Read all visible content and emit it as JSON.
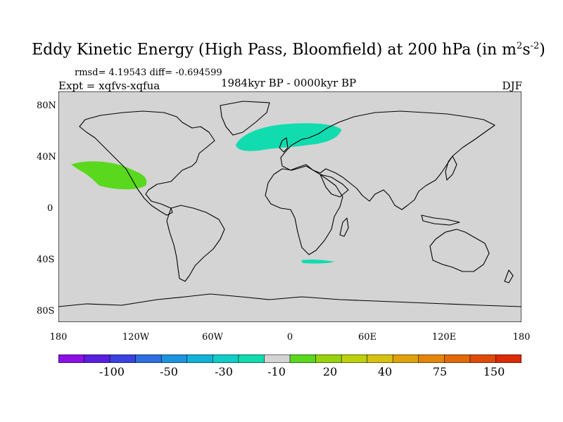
{
  "title": {
    "main": "Eddy Kinetic Energy (High Pass, Bloomfield) at 200 hPa (in m",
    "sup1": "2",
    "s": "s",
    "sup2": "-2",
    "close": ")"
  },
  "stats": "rmsd= 4.19543 diff= -0.694599",
  "experiment": "Expt = xqfvs-xqfua",
  "period": "1984kyr BP - 0000kyr BP",
  "season": "DJF",
  "lat_labels": [
    "80N",
    "40N",
    "0",
    "40S",
    "80S"
  ],
  "lon_labels": [
    "180",
    "120W",
    "60W",
    "0",
    "60E",
    "120E",
    "180"
  ],
  "colorbar": {
    "labels": [
      "-100",
      "-50",
      "-30",
      "-10",
      "20",
      "40",
      "75",
      "150"
    ],
    "colors": [
      "#8b10e6",
      "#5a1fe0",
      "#3a43e0",
      "#2e6ee0",
      "#1e94e0",
      "#12b2d8",
      "#10cdc8",
      "#10dcb0",
      "#d4d4d4",
      "#5ad81e",
      "#98d20e",
      "#bcd00e",
      "#d8c00e",
      "#e0a20c",
      "#e4860c",
      "#e26a0a",
      "#e04a08",
      "#dc2a04"
    ]
  },
  "colors": {
    "ocean": "#d4d4d4",
    "positive_anomaly": "#5ad81e",
    "negative_anomaly": "#10dcb0"
  }
}
